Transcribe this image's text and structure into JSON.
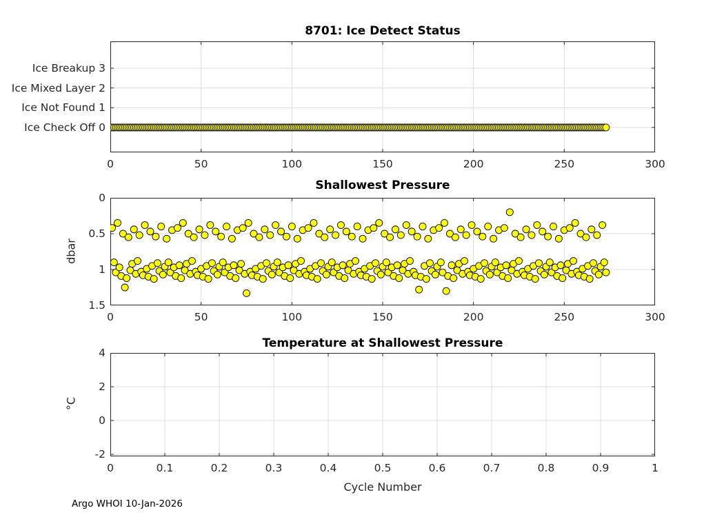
{
  "figure": {
    "footer": "Argo WHOI 10-Jan-2026"
  },
  "chart_data": [
    {
      "type": "scatter",
      "title": "8701: Ice Detect Status",
      "xlim": [
        0,
        300
      ],
      "xticks": [
        0,
        50,
        100,
        150,
        200,
        250,
        300
      ],
      "ylim": [
        -1.26,
        4.36
      ],
      "yticks": [
        0,
        1,
        2,
        3
      ],
      "ytick_labels": [
        "Ice Check Off 0",
        "Ice Not Found 1",
        "Ice Mixed Layer 2",
        "Ice Breakup 3"
      ],
      "grid": true,
      "legend": "none",
      "marker": {
        "shape": "circle",
        "fill": "#ffff00",
        "edge": "#000000",
        "radius": 5
      },
      "series": [
        {
          "name": "ice_detect_status",
          "x_from": 1,
          "x_to": 273,
          "x_step": 1,
          "y_constant": 0
        }
      ]
    },
    {
      "type": "scatter",
      "title": "Shallowest Pressure",
      "ylabel": "dbar",
      "xlim": [
        0,
        300
      ],
      "xticks": [
        0,
        50,
        100,
        150,
        200,
        250,
        300
      ],
      "ylim": [
        0,
        1.5
      ],
      "y_reversed": true,
      "yticks": [
        0,
        0.5,
        1,
        1.5
      ],
      "grid": true,
      "legend": "none",
      "marker": {
        "shape": "circle",
        "fill": "#ffff00",
        "edge": "#000000",
        "radius": 5
      },
      "points": [
        [
          1,
          0.42
        ],
        [
          4,
          0.35
        ],
        [
          7,
          0.5
        ],
        [
          10,
          0.55
        ],
        [
          13,
          0.44
        ],
        [
          16,
          0.52
        ],
        [
          19,
          0.38
        ],
        [
          22,
          0.47
        ],
        [
          25,
          0.54
        ],
        [
          28,
          0.4
        ],
        [
          31,
          0.57
        ],
        [
          34,
          0.45
        ],
        [
          37,
          0.42
        ],
        [
          40,
          0.35
        ],
        [
          43,
          0.5
        ],
        [
          46,
          0.55
        ],
        [
          49,
          0.44
        ],
        [
          52,
          0.52
        ],
        [
          55,
          0.38
        ],
        [
          58,
          0.47
        ],
        [
          61,
          0.54
        ],
        [
          64,
          0.4
        ],
        [
          67,
          0.57
        ],
        [
          70,
          0.45
        ],
        [
          73,
          0.42
        ],
        [
          76,
          0.35
        ],
        [
          79,
          0.5
        ],
        [
          82,
          0.55
        ],
        [
          85,
          0.44
        ],
        [
          88,
          0.52
        ],
        [
          91,
          0.38
        ],
        [
          94,
          0.47
        ],
        [
          97,
          0.54
        ],
        [
          100,
          0.4
        ],
        [
          103,
          0.57
        ],
        [
          106,
          0.45
        ],
        [
          109,
          0.42
        ],
        [
          112,
          0.35
        ],
        [
          115,
          0.5
        ],
        [
          118,
          0.55
        ],
        [
          121,
          0.44
        ],
        [
          124,
          0.52
        ],
        [
          127,
          0.38
        ],
        [
          130,
          0.47
        ],
        [
          133,
          0.54
        ],
        [
          136,
          0.4
        ],
        [
          139,
          0.57
        ],
        [
          142,
          0.45
        ],
        [
          145,
          0.42
        ],
        [
          148,
          0.35
        ],
        [
          151,
          0.5
        ],
        [
          154,
          0.55
        ],
        [
          157,
          0.44
        ],
        [
          160,
          0.52
        ],
        [
          163,
          0.38
        ],
        [
          166,
          0.47
        ],
        [
          169,
          0.54
        ],
        [
          172,
          0.4
        ],
        [
          175,
          0.57
        ],
        [
          178,
          0.45
        ],
        [
          181,
          0.42
        ],
        [
          184,
          0.35
        ],
        [
          187,
          0.5
        ],
        [
          190,
          0.55
        ],
        [
          193,
          0.44
        ],
        [
          196,
          0.52
        ],
        [
          199,
          0.38
        ],
        [
          202,
          0.47
        ],
        [
          205,
          0.54
        ],
        [
          208,
          0.4
        ],
        [
          211,
          0.57
        ],
        [
          214,
          0.45
        ],
        [
          217,
          0.42
        ],
        [
          220,
          0.2
        ],
        [
          223,
          0.5
        ],
        [
          226,
          0.55
        ],
        [
          229,
          0.44
        ],
        [
          232,
          0.52
        ],
        [
          235,
          0.38
        ],
        [
          238,
          0.47
        ],
        [
          241,
          0.54
        ],
        [
          244,
          0.4
        ],
        [
          247,
          0.57
        ],
        [
          250,
          0.45
        ],
        [
          253,
          0.42
        ],
        [
          256,
          0.35
        ],
        [
          259,
          0.5
        ],
        [
          262,
          0.55
        ],
        [
          265,
          0.44
        ],
        [
          268,
          0.52
        ],
        [
          271,
          0.38
        ],
        [
          2,
          0.9
        ],
        [
          3,
          1.04
        ],
        [
          5,
          0.97
        ],
        [
          6,
          1.09
        ],
        [
          8,
          1.25
        ],
        [
          9,
          1.12
        ],
        [
          11,
          1.01
        ],
        [
          12,
          0.92
        ],
        [
          14,
          1.06
        ],
        [
          15,
          0.88
        ],
        [
          17,
          1.03
        ],
        [
          18,
          1.08
        ],
        [
          20,
          0.99
        ],
        [
          21,
          1.1
        ],
        [
          23,
          0.95
        ],
        [
          24,
          1.13
        ],
        [
          26,
          0.91
        ],
        [
          27,
          1.02
        ],
        [
          29,
          1.07
        ],
        [
          30,
          0.96
        ],
        [
          32,
          0.9
        ],
        [
          33,
          1.04
        ],
        [
          35,
          0.97
        ],
        [
          36,
          1.09
        ],
        [
          38,
          0.94
        ],
        [
          39,
          1.12
        ],
        [
          41,
          1.01
        ],
        [
          42,
          0.92
        ],
        [
          44,
          1.06
        ],
        [
          45,
          0.88
        ],
        [
          47,
          1.03
        ],
        [
          48,
          1.08
        ],
        [
          50,
          0.99
        ],
        [
          51,
          1.1
        ],
        [
          53,
          0.95
        ],
        [
          54,
          1.13
        ],
        [
          56,
          0.91
        ],
        [
          57,
          1.02
        ],
        [
          59,
          1.07
        ],
        [
          60,
          0.96
        ],
        [
          62,
          0.9
        ],
        [
          63,
          1.04
        ],
        [
          65,
          0.97
        ],
        [
          66,
          1.09
        ],
        [
          68,
          0.94
        ],
        [
          69,
          1.12
        ],
        [
          71,
          1.01
        ],
        [
          72,
          0.92
        ],
        [
          74,
          1.06
        ],
        [
          75,
          1.33
        ],
        [
          77,
          1.03
        ],
        [
          78,
          1.08
        ],
        [
          80,
          0.99
        ],
        [
          81,
          1.1
        ],
        [
          83,
          0.95
        ],
        [
          84,
          1.13
        ],
        [
          86,
          0.91
        ],
        [
          87,
          1.02
        ],
        [
          89,
          1.07
        ],
        [
          90,
          0.96
        ],
        [
          92,
          0.9
        ],
        [
          93,
          1.04
        ],
        [
          95,
          0.97
        ],
        [
          96,
          1.09
        ],
        [
          98,
          0.94
        ],
        [
          99,
          1.12
        ],
        [
          101,
          1.01
        ],
        [
          102,
          0.92
        ],
        [
          104,
          1.06
        ],
        [
          105,
          0.88
        ],
        [
          107,
          1.03
        ],
        [
          108,
          1.08
        ],
        [
          110,
          0.99
        ],
        [
          111,
          1.1
        ],
        [
          113,
          0.95
        ],
        [
          114,
          1.13
        ],
        [
          116,
          0.91
        ],
        [
          117,
          1.02
        ],
        [
          119,
          1.07
        ],
        [
          120,
          0.96
        ],
        [
          122,
          0.9
        ],
        [
          123,
          1.04
        ],
        [
          125,
          0.97
        ],
        [
          126,
          1.09
        ],
        [
          128,
          0.94
        ],
        [
          129,
          1.12
        ],
        [
          131,
          1.01
        ],
        [
          132,
          0.92
        ],
        [
          134,
          1.06
        ],
        [
          135,
          0.88
        ],
        [
          137,
          1.03
        ],
        [
          138,
          1.08
        ],
        [
          140,
          0.99
        ],
        [
          141,
          1.1
        ],
        [
          143,
          0.95
        ],
        [
          144,
          1.13
        ],
        [
          146,
          0.91
        ],
        [
          147,
          1.02
        ],
        [
          149,
          1.07
        ],
        [
          150,
          0.96
        ],
        [
          152,
          0.9
        ],
        [
          153,
          1.04
        ],
        [
          155,
          0.97
        ],
        [
          156,
          1.09
        ],
        [
          158,
          0.94
        ],
        [
          159,
          1.12
        ],
        [
          161,
          1.01
        ],
        [
          162,
          0.92
        ],
        [
          164,
          1.06
        ],
        [
          165,
          0.88
        ],
        [
          167,
          1.03
        ],
        [
          168,
          1.08
        ],
        [
          170,
          1.28
        ],
        [
          171,
          1.1
        ],
        [
          173,
          0.95
        ],
        [
          174,
          1.13
        ],
        [
          176,
          0.91
        ],
        [
          177,
          1.02
        ],
        [
          179,
          1.07
        ],
        [
          180,
          0.96
        ],
        [
          182,
          0.9
        ],
        [
          183,
          1.04
        ],
        [
          185,
          1.3
        ],
        [
          186,
          1.09
        ],
        [
          188,
          0.94
        ],
        [
          189,
          1.12
        ],
        [
          191,
          1.01
        ],
        [
          192,
          0.92
        ],
        [
          194,
          1.06
        ],
        [
          195,
          0.88
        ],
        [
          197,
          1.03
        ],
        [
          198,
          1.08
        ],
        [
          200,
          0.99
        ],
        [
          201,
          1.1
        ],
        [
          203,
          0.95
        ],
        [
          204,
          1.13
        ],
        [
          206,
          0.91
        ],
        [
          207,
          1.02
        ],
        [
          209,
          1.07
        ],
        [
          210,
          0.96
        ],
        [
          212,
          0.9
        ],
        [
          213,
          1.04
        ],
        [
          215,
          0.97
        ],
        [
          216,
          1.09
        ],
        [
          218,
          0.94
        ],
        [
          219,
          1.12
        ],
        [
          221,
          1.01
        ],
        [
          222,
          0.92
        ],
        [
          224,
          1.06
        ],
        [
          225,
          0.88
        ],
        [
          227,
          1.03
        ],
        [
          228,
          1.08
        ],
        [
          230,
          0.99
        ],
        [
          231,
          1.1
        ],
        [
          233,
          0.95
        ],
        [
          234,
          1.13
        ],
        [
          236,
          0.91
        ],
        [
          237,
          1.02
        ],
        [
          239,
          1.07
        ],
        [
          240,
          0.96
        ],
        [
          242,
          0.9
        ],
        [
          243,
          1.04
        ],
        [
          245,
          0.97
        ],
        [
          246,
          1.09
        ],
        [
          248,
          0.94
        ],
        [
          249,
          1.12
        ],
        [
          251,
          1.01
        ],
        [
          252,
          0.92
        ],
        [
          254,
          1.06
        ],
        [
          255,
          0.88
        ],
        [
          257,
          1.03
        ],
        [
          258,
          1.08
        ],
        [
          260,
          0.99
        ],
        [
          261,
          1.1
        ],
        [
          263,
          0.95
        ],
        [
          264,
          1.13
        ],
        [
          266,
          0.91
        ],
        [
          267,
          1.02
        ],
        [
          269,
          1.07
        ],
        [
          270,
          0.96
        ],
        [
          272,
          0.9
        ],
        [
          273,
          1.04
        ]
      ]
    },
    {
      "type": "scatter",
      "title": "Temperature at Shallowest Pressure",
      "ylabel": "°C",
      "xlabel": "Cycle Number",
      "xlim": [
        0,
        1
      ],
      "xticks": [
        0,
        0.1,
        0.2,
        0.3,
        0.4,
        0.5,
        0.6,
        0.7,
        0.8,
        0.9,
        1
      ],
      "ylim": [
        -2.12,
        4
      ],
      "yticks": [
        -2,
        0,
        2,
        4
      ],
      "grid": true,
      "legend": "none",
      "marker": {
        "shape": "circle",
        "fill": "#ffff00",
        "edge": "#000000",
        "radius": 5
      },
      "points": []
    }
  ]
}
